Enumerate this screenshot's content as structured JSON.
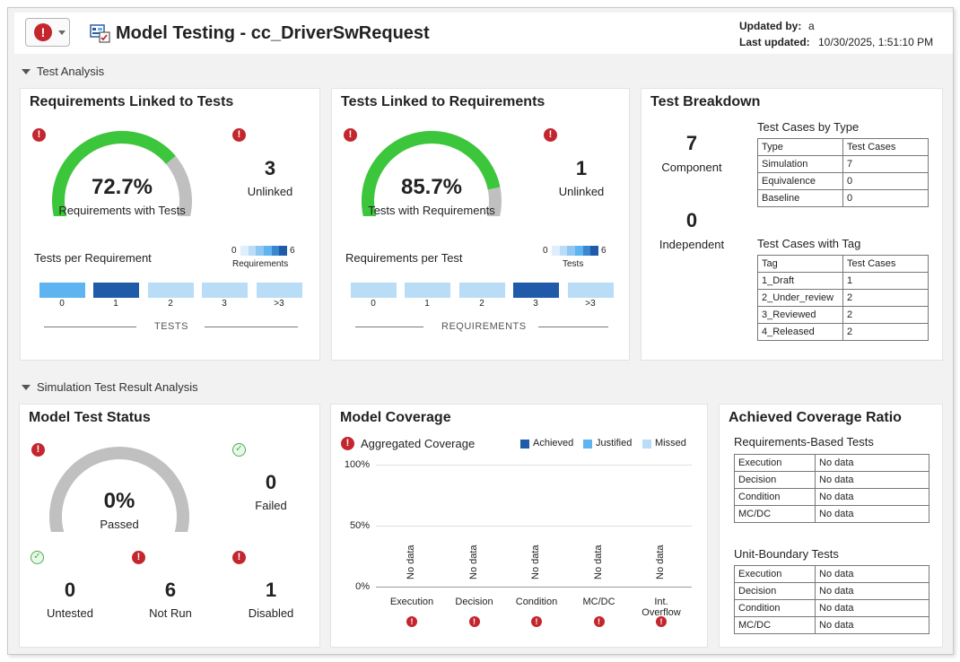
{
  "header": {
    "title": "Model Testing - cc_DriverSwRequest",
    "updated_by_label": "Updated by:",
    "updated_by_value": "a",
    "last_updated_label": "Last updated:",
    "last_updated_value": "10/30/2025, 1:51:10 PM"
  },
  "sections": {
    "test_analysis": "Test Analysis",
    "sim_analysis": "Simulation Test Result Analysis"
  },
  "req_linked": {
    "title": "Requirements Linked to Tests",
    "percent": 72.7,
    "percent_text": "72.7%",
    "gauge_label": "Requirements with Tests",
    "unlinked_count": "3",
    "unlinked_label": "Unlinked",
    "dist_title": "Tests per Requirement",
    "scale_min": "0",
    "scale_max": "6",
    "scale_label": "Requirements",
    "bins": [
      "0",
      "1",
      "2",
      "3",
      ">3"
    ],
    "axis_label": "TESTS",
    "bin_colors": [
      "#5db4f0",
      "#1f5ba8",
      "#b9dcf7",
      "#b9dcf7",
      "#b9dcf7"
    ]
  },
  "tests_linked": {
    "title": "Tests Linked to Requirements",
    "percent": 85.7,
    "percent_text": "85.7%",
    "gauge_label": "Tests with Requirements",
    "unlinked_count": "1",
    "unlinked_label": "Unlinked",
    "dist_title": "Requirements per Test",
    "scale_min": "0",
    "scale_max": "6",
    "scale_label": "Tests",
    "bins": [
      "0",
      "1",
      "2",
      "3",
      ">3"
    ],
    "axis_label": "REQUIREMENTS",
    "bin_colors": [
      "#b9dcf7",
      "#b9dcf7",
      "#b9dcf7",
      "#1f5ba8",
      "#b9dcf7"
    ]
  },
  "breakdown": {
    "title": "Test Breakdown",
    "component_count": "7",
    "component_label": "Component",
    "independent_count": "0",
    "independent_label": "Independent",
    "by_type_title": "Test Cases by Type",
    "by_type_headers": [
      "Type",
      "Test Cases"
    ],
    "by_type_rows": [
      [
        "Simulation",
        "7"
      ],
      [
        "Equivalence",
        "0"
      ],
      [
        "Baseline",
        "0"
      ]
    ],
    "by_tag_title": "Test Cases with Tag",
    "by_tag_headers": [
      "Tag",
      "Test Cases"
    ],
    "by_tag_rows": [
      [
        "1_Draft",
        "1"
      ],
      [
        "2_Under_review",
        "2"
      ],
      [
        "3_Reviewed",
        "2"
      ],
      [
        "4_Released",
        "2"
      ]
    ]
  },
  "status": {
    "title": "Model Test Status",
    "percent": 0,
    "percent_text": "0%",
    "gauge_label": "Passed",
    "failed_count": "0",
    "failed_label": "Failed",
    "untested_count": "0",
    "untested_label": "Untested",
    "notrun_count": "6",
    "notrun_label": "Not Run",
    "disabled_count": "1",
    "disabled_label": "Disabled"
  },
  "coverage": {
    "title": "Model Coverage",
    "subtitle": "Aggregated Coverage",
    "legend": [
      {
        "name": "Achieved",
        "color": "#1f5ba8"
      },
      {
        "name": "Justified",
        "color": "#5db4f0"
      },
      {
        "name": "Missed",
        "color": "#b9dcf7"
      }
    ],
    "y_ticks": [
      "100%",
      "50%",
      "0%"
    ],
    "nodata_text": "No data"
  },
  "chart_data": {
    "type": "bar",
    "title": "Aggregated Coverage",
    "categories": [
      "Execution",
      "Decision",
      "Condition",
      "MC/DC",
      "Int. Overflow"
    ],
    "series": [
      {
        "name": "Achieved",
        "values": [
          null,
          null,
          null,
          null,
          null
        ]
      },
      {
        "name": "Justified",
        "values": [
          null,
          null,
          null,
          null,
          null
        ]
      },
      {
        "name": "Missed",
        "values": [
          null,
          null,
          null,
          null,
          null
        ]
      }
    ],
    "ylim": [
      0,
      100
    ],
    "y_unit": "%",
    "grid": true,
    "legend_position": "top-right"
  },
  "ratio": {
    "title": "Achieved Coverage Ratio",
    "req_title": "Requirements-Based Tests",
    "req_rows": [
      [
        "Execution",
        "No data"
      ],
      [
        "Decision",
        "No data"
      ],
      [
        "Condition",
        "No data"
      ],
      [
        "MC/DC",
        "No data"
      ]
    ],
    "unit_title": "Unit-Boundary Tests",
    "unit_rows": [
      [
        "Execution",
        "No data"
      ],
      [
        "Decision",
        "No data"
      ],
      [
        "Condition",
        "No data"
      ],
      [
        "MC/DC",
        "No data"
      ]
    ]
  },
  "colors": {
    "gauge_green": "#3cc63c",
    "gauge_gray": "#c0c0c0",
    "error_red": "#c4262e",
    "ok_green": "#4caf50"
  }
}
